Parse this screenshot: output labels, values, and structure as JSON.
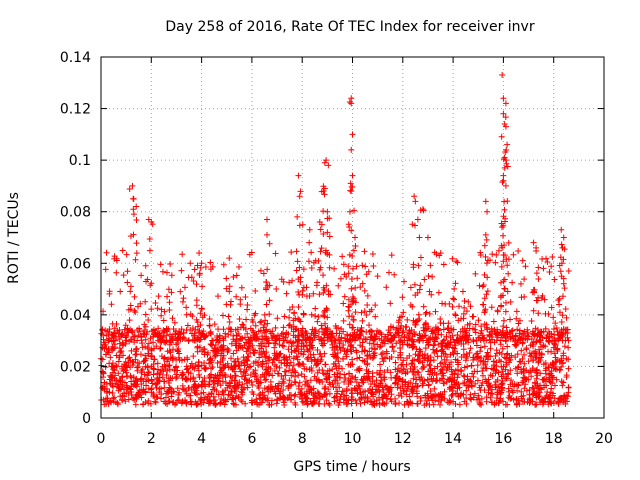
{
  "chart_data": {
    "type": "scatter",
    "title": "Day 258 of 2016, Rate Of TEC Index for receiver invr",
    "xlabel": "GPS time / hours",
    "ylabel": "ROTI / TECUs",
    "xlim": [
      0,
      20
    ],
    "ylim": [
      0,
      0.14
    ],
    "xticks": [
      "0",
      "2",
      "4",
      "6",
      "8",
      "10",
      "12",
      "14",
      "16",
      "18",
      "20"
    ],
    "yticks": [
      "0",
      "0.02",
      "0.04",
      "0.06",
      "0.08",
      "0.1",
      "0.12",
      "0.14"
    ],
    "grid": true,
    "marker": "plus",
    "color": "#ff0000",
    "data_x_range": [
      0,
      18.6
    ],
    "baseline_band": [
      0.005,
      0.035
    ],
    "notable_points": [
      {
        "x": 1.25,
        "y": 0.09
      },
      {
        "x": 1.3,
        "y": 0.085
      },
      {
        "x": 1.4,
        "y": 0.082
      },
      {
        "x": 1.9,
        "y": 0.077
      },
      {
        "x": 2.0,
        "y": 0.076
      },
      {
        "x": 3.9,
        "y": 0.064
      },
      {
        "x": 4.0,
        "y": 0.06
      },
      {
        "x": 5.1,
        "y": 0.062
      },
      {
        "x": 6.6,
        "y": 0.077
      },
      {
        "x": 6.6,
        "y": 0.071
      },
      {
        "x": 7.85,
        "y": 0.094
      },
      {
        "x": 7.9,
        "y": 0.086
      },
      {
        "x": 7.8,
        "y": 0.078
      },
      {
        "x": 8.3,
        "y": 0.073
      },
      {
        "x": 8.7,
        "y": 0.076
      },
      {
        "x": 8.95,
        "y": 0.1
      },
      {
        "x": 8.9,
        "y": 0.099
      },
      {
        "x": 8.9,
        "y": 0.089
      },
      {
        "x": 8.85,
        "y": 0.088
      },
      {
        "x": 9.0,
        "y": 0.08
      },
      {
        "x": 9.0,
        "y": 0.072
      },
      {
        "x": 9.95,
        "y": 0.124
      },
      {
        "x": 9.95,
        "y": 0.122
      },
      {
        "x": 10.0,
        "y": 0.11
      },
      {
        "x": 9.95,
        "y": 0.104
      },
      {
        "x": 10.0,
        "y": 0.094
      },
      {
        "x": 9.95,
        "y": 0.088
      },
      {
        "x": 9.9,
        "y": 0.08
      },
      {
        "x": 10.1,
        "y": 0.07
      },
      {
        "x": 12.45,
        "y": 0.086
      },
      {
        "x": 12.5,
        "y": 0.084
      },
      {
        "x": 12.6,
        "y": 0.077
      },
      {
        "x": 12.8,
        "y": 0.081
      },
      {
        "x": 13.0,
        "y": 0.07
      },
      {
        "x": 15.3,
        "y": 0.084
      },
      {
        "x": 15.35,
        "y": 0.08
      },
      {
        "x": 15.3,
        "y": 0.071
      },
      {
        "x": 15.95,
        "y": 0.133
      },
      {
        "x": 16.0,
        "y": 0.124
      },
      {
        "x": 16.0,
        "y": 0.118
      },
      {
        "x": 16.05,
        "y": 0.114
      },
      {
        "x": 16.1,
        "y": 0.113
      },
      {
        "x": 16.05,
        "y": 0.101
      },
      {
        "x": 16.1,
        "y": 0.1
      },
      {
        "x": 16.0,
        "y": 0.094
      },
      {
        "x": 16.0,
        "y": 0.092
      },
      {
        "x": 16.1,
        "y": 0.09
      },
      {
        "x": 17.2,
        "y": 0.068
      },
      {
        "x": 17.3,
        "y": 0.066
      },
      {
        "x": 18.3,
        "y": 0.073
      },
      {
        "x": 18.4,
        "y": 0.07
      },
      {
        "x": 18.35,
        "y": 0.066
      }
    ]
  }
}
